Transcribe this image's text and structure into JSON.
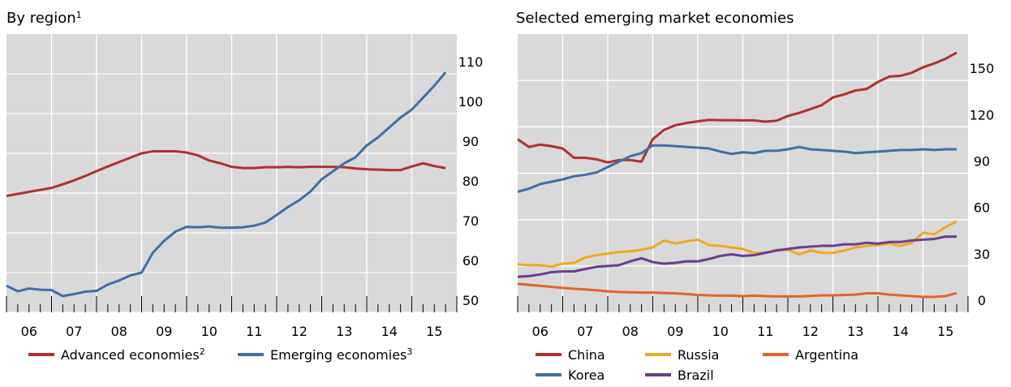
{
  "chart_data": [
    {
      "type": "line",
      "title": "By region",
      "title_note": "1",
      "x": [
        2006,
        2006.25,
        2006.5,
        2006.75,
        2007,
        2007.25,
        2007.5,
        2007.75,
        2008,
        2008.25,
        2008.5,
        2008.75,
        2009,
        2009.25,
        2009.5,
        2009.75,
        2010,
        2010.25,
        2010.5,
        2010.75,
        2011,
        2011.25,
        2011.5,
        2011.75,
        2012,
        2012.25,
        2012.5,
        2012.75,
        2013,
        2013.25,
        2013.5,
        2013.75,
        2014,
        2014.25,
        2014.5,
        2014.75,
        2015,
        2015.25,
        2015.5,
        2015.75
      ],
      "xlim": [
        2006,
        2016
      ],
      "xticks": [
        {
          "value": 2006,
          "label": "06"
        },
        {
          "value": 2007,
          "label": "07"
        },
        {
          "value": 2008,
          "label": "08"
        },
        {
          "value": 2009,
          "label": "09"
        },
        {
          "value": 2010,
          "label": "10"
        },
        {
          "value": 2011,
          "label": "11"
        },
        {
          "value": 2012,
          "label": "12"
        },
        {
          "value": 2013,
          "label": "13"
        },
        {
          "value": 2014,
          "label": "14"
        },
        {
          "value": 2015,
          "label": "15"
        }
      ],
      "ylim": [
        50,
        120
      ],
      "yticks": [
        50,
        60,
        70,
        80,
        90,
        100,
        110
      ],
      "grid": true,
      "series": [
        {
          "name": "Advanced economies",
          "note": "2",
          "color": "#b0312e",
          "values": [
            79.3,
            79.8,
            80.3,
            80.8,
            81.3,
            82.2,
            83.2,
            84.3,
            85.5,
            86.7,
            87.8,
            88.9,
            90.0,
            90.5,
            90.5,
            90.5,
            90.2,
            89.5,
            88.2,
            87.5,
            86.6,
            86.3,
            86.3,
            86.5,
            86.5,
            86.6,
            86.5,
            86.6,
            86.6,
            86.6,
            86.5,
            86.2,
            86.0,
            85.9,
            85.8,
            85.8,
            86.7,
            87.5,
            86.8,
            86.3
          ]
        },
        {
          "name": "Emerging economies",
          "note": "3",
          "color": "#3f6faa",
          "values": [
            56.7,
            55.3,
            56.0,
            55.7,
            55.6,
            54.1,
            54.6,
            55.2,
            55.4,
            57.0,
            58.0,
            59.3,
            60.0,
            65.0,
            68.0,
            70.3,
            71.5,
            71.4,
            71.6,
            71.3,
            71.3,
            71.4,
            71.8,
            72.6,
            74.5,
            76.5,
            78.2,
            80.4,
            83.5,
            85.5,
            87.5,
            89.0,
            92.0,
            94.0,
            96.5,
            99.0,
            101.0,
            104.0,
            107.0,
            110.4
          ]
        }
      ]
    },
    {
      "type": "line",
      "title": "Selected emerging market economies",
      "x": [
        2006,
        2006.25,
        2006.5,
        2006.75,
        2007,
        2007.25,
        2007.5,
        2007.75,
        2008,
        2008.25,
        2008.5,
        2008.75,
        2009,
        2009.25,
        2009.5,
        2009.75,
        2010,
        2010.25,
        2010.5,
        2010.75,
        2011,
        2011.25,
        2011.5,
        2011.75,
        2012,
        2012.25,
        2012.5,
        2012.75,
        2013,
        2013.25,
        2013.5,
        2013.75,
        2014,
        2014.25,
        2014.5,
        2014.75,
        2015,
        2015.25,
        2015.5,
        2015.75
      ],
      "xlim": [
        2006,
        2016
      ],
      "xticks": [
        {
          "value": 2006,
          "label": "06"
        },
        {
          "value": 2007,
          "label": "07"
        },
        {
          "value": 2008,
          "label": "08"
        },
        {
          "value": 2009,
          "label": "09"
        },
        {
          "value": 2010,
          "label": "10"
        },
        {
          "value": 2011,
          "label": "11"
        },
        {
          "value": 2012,
          "label": "12"
        },
        {
          "value": 2013,
          "label": "13"
        },
        {
          "value": 2014,
          "label": "14"
        },
        {
          "value": 2015,
          "label": "15"
        }
      ],
      "ylim": [
        0,
        180
      ],
      "yticks": [
        0,
        30,
        60,
        90,
        120,
        150
      ],
      "grid": true,
      "series": [
        {
          "name": "China",
          "color": "#b0312e",
          "values": [
            112,
            107,
            108.5,
            107.5,
            106,
            100,
            100,
            99,
            97,
            98.5,
            98.5,
            97.5,
            112,
            118,
            121,
            122.5,
            123.5,
            124.5,
            124.3,
            124.3,
            124.2,
            124.2,
            123.3,
            124,
            127,
            129,
            131.5,
            134,
            139,
            141,
            143.5,
            144.5,
            149,
            152.5,
            153,
            155,
            158.5,
            161,
            164,
            168
          ]
        },
        {
          "name": "Russia",
          "color": "#f0a81c",
          "values": [
            31,
            30.5,
            30.5,
            29.5,
            31.5,
            32,
            35.5,
            37,
            38,
            39,
            39.5,
            40.5,
            42,
            46.5,
            44.5,
            46,
            47,
            43.5,
            43,
            42,
            41,
            38.5,
            38.5,
            40.5,
            40.5,
            37.5,
            40,
            38.5,
            38.5,
            40,
            42,
            43,
            43.5,
            44.5,
            43,
            45,
            51.5,
            50.5,
            55,
            59
          ]
        },
        {
          "name": "Argentina",
          "color": "#e0642a",
          "values": [
            18.5,
            17.8,
            17.2,
            16.5,
            15.8,
            15.2,
            14.8,
            14.3,
            13.6,
            13.2,
            13,
            12.8,
            12.8,
            12.5,
            12.3,
            11.8,
            11.3,
            11,
            10.8,
            10.8,
            10.5,
            10.8,
            10.5,
            10.3,
            10.3,
            10.3,
            10.6,
            11,
            11,
            11.2,
            11.5,
            12.3,
            12.3,
            11.5,
            11,
            10.5,
            10,
            10,
            10.5,
            12.5
          ]
        },
        {
          "name": "Korea",
          "color": "#3f6faa",
          "values": [
            78,
            80,
            83,
            84.5,
            86,
            88,
            89,
            90.5,
            94,
            97.5,
            101,
            103,
            108,
            108,
            107.5,
            107,
            106.5,
            106,
            104,
            102.5,
            103.5,
            103,
            104.5,
            104.5,
            105.5,
            107,
            105.5,
            105,
            104.5,
            104,
            103,
            103.5,
            104,
            104.5,
            105,
            105,
            105.5,
            105,
            105.5,
            105.5
          ]
        },
        {
          "name": "Brazil",
          "color": "#6b3e8c",
          "values": [
            23,
            23.5,
            24.5,
            26,
            26.5,
            26.5,
            28,
            29.5,
            30,
            30.5,
            33,
            35,
            32.5,
            31.5,
            32,
            33,
            33,
            34.5,
            36.5,
            37.5,
            36.5,
            37,
            38.5,
            40,
            41,
            42,
            42.5,
            43,
            43,
            44,
            44,
            45,
            44.5,
            45.5,
            45.5,
            46.5,
            47,
            47.5,
            49,
            49
          ]
        }
      ]
    }
  ]
}
